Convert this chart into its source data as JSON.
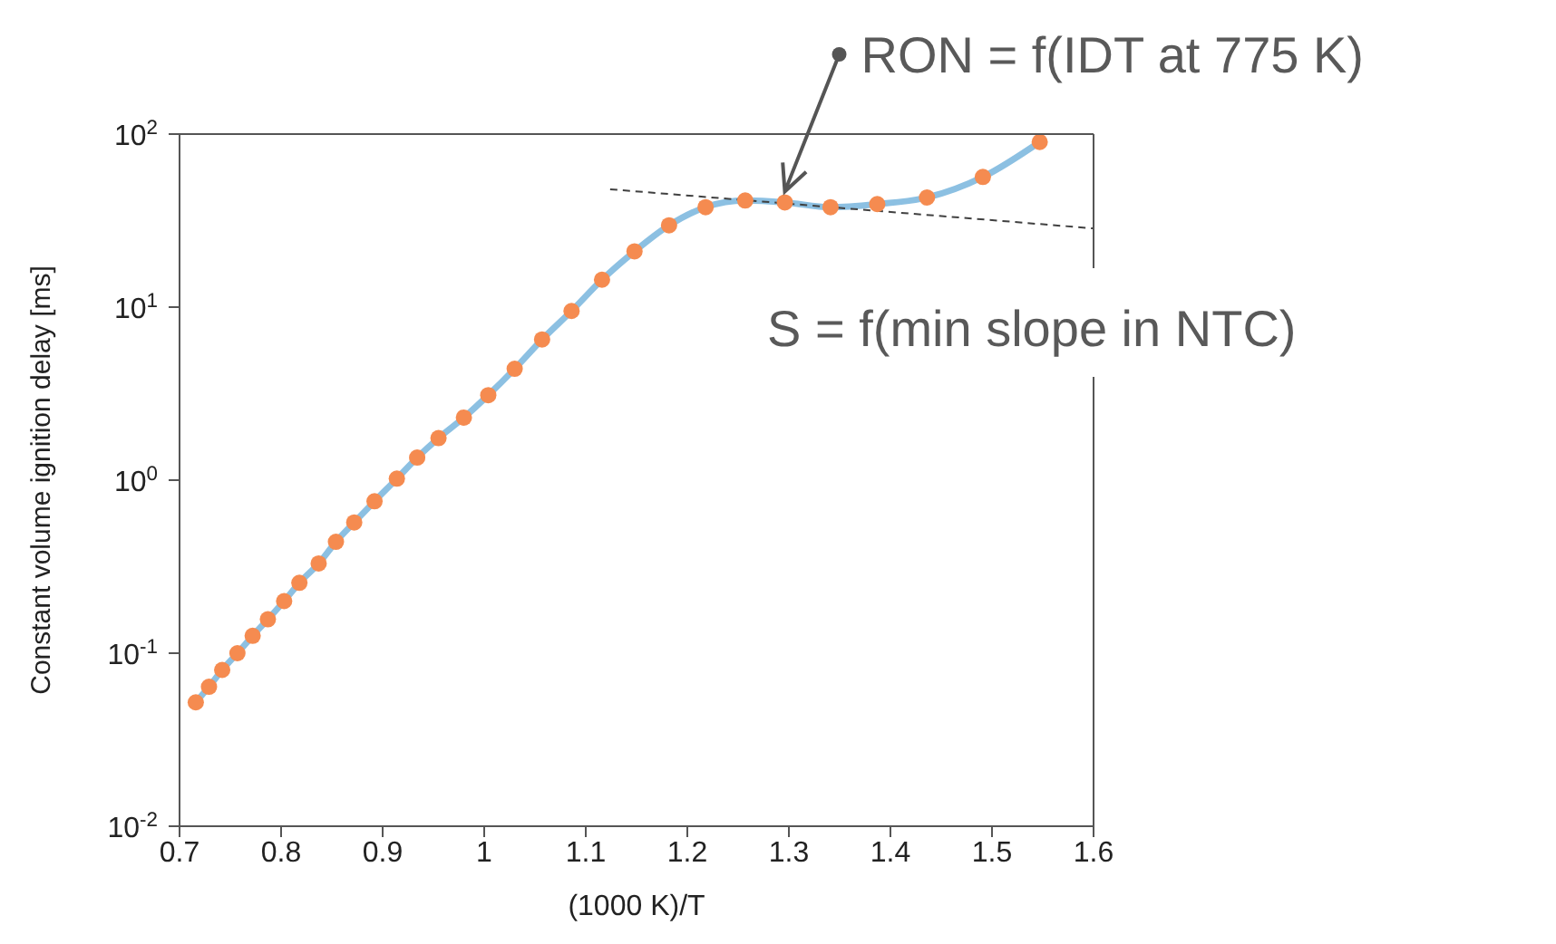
{
  "chart_data": {
    "type": "line",
    "xlabel": "(1000 K)/T",
    "ylabel": "Constant volume ignition delay [ms]",
    "annotations": [
      {
        "text": "RON = f(IDT at 775 K)",
        "x": 1.296,
        "y": 40.3
      },
      "S = f(min slope in NTC)"
    ],
    "series": [
      {
        "color": "#8cc0e2",
        "line_style": "solid",
        "colors": [
          "#f58b50",
          "#f58b50",
          "#f58b50",
          "#f58b50",
          "#f58b50",
          "#f58b50",
          "#f58b50",
          "#f58b50",
          "#f58b50",
          "#f58b50",
          "#f58b50",
          "#f58b50",
          "#f58b50",
          "#f58b50",
          "#f58b50",
          "#f58b50",
          "#f58b50",
          "#f58b50",
          "#f58b50",
          "#f58b50",
          "#f58b50",
          "#f58b50",
          "#f58b50",
          "#f58b50",
          "#f58b50",
          "#f58b50",
          "#f58b50",
          "#f58b50",
          "#f58b50",
          "#f58b50",
          "#f58b50"
        ],
        "x": [
          0.716,
          0.729,
          0.742,
          0.757,
          0.772,
          0.787,
          0.803,
          0.818,
          0.837,
          0.854,
          0.872,
          0.892,
          0.914,
          0.934,
          0.955,
          0.98,
          1.004,
          1.03,
          1.057,
          1.086,
          1.116,
          1.148,
          1.182,
          1.218,
          1.257,
          1.296,
          1.341,
          1.387,
          1.436,
          1.491,
          1.547
        ],
        "values": [
          0.052,
          0.064,
          0.08,
          0.1,
          0.126,
          0.157,
          0.2,
          0.255,
          0.33,
          0.44,
          0.57,
          0.755,
          1.02,
          1.35,
          1.75,
          2.3,
          3.1,
          4.4,
          6.5,
          9.5,
          14.4,
          21,
          29.7,
          37.8,
          41.3,
          40.3,
          37.8,
          39.4,
          43,
          56.5,
          90
        ]
      },
      {
        "color": "#404040",
        "marker": "none",
        "line_style": "dashed",
        "x": [
          1.124,
          1.6
        ],
        "values": [
          48,
          28.5
        ]
      }
    ],
    "xlim": [
      0.7,
      1.6
    ],
    "xticks": [
      0.7,
      0.8,
      0.9,
      1,
      1.1,
      1.2,
      1.3,
      1.4,
      1.5,
      1.6
    ],
    "ylim": [
      0.01,
      100
    ],
    "log": "y",
    "yticks": [
      {
        "value": 0.01,
        "label": "10$^{-2}$"
      },
      {
        "value": 0.1,
        "label": "10$^{-1}$"
      },
      {
        "value": 1,
        "label": "10$^{0}$"
      },
      {
        "value": 10,
        "label": "10$^{1}$"
      },
      {
        "value": 100,
        "label": "10$^{2}$"
      }
    ],
    "marker": "circle"
  }
}
